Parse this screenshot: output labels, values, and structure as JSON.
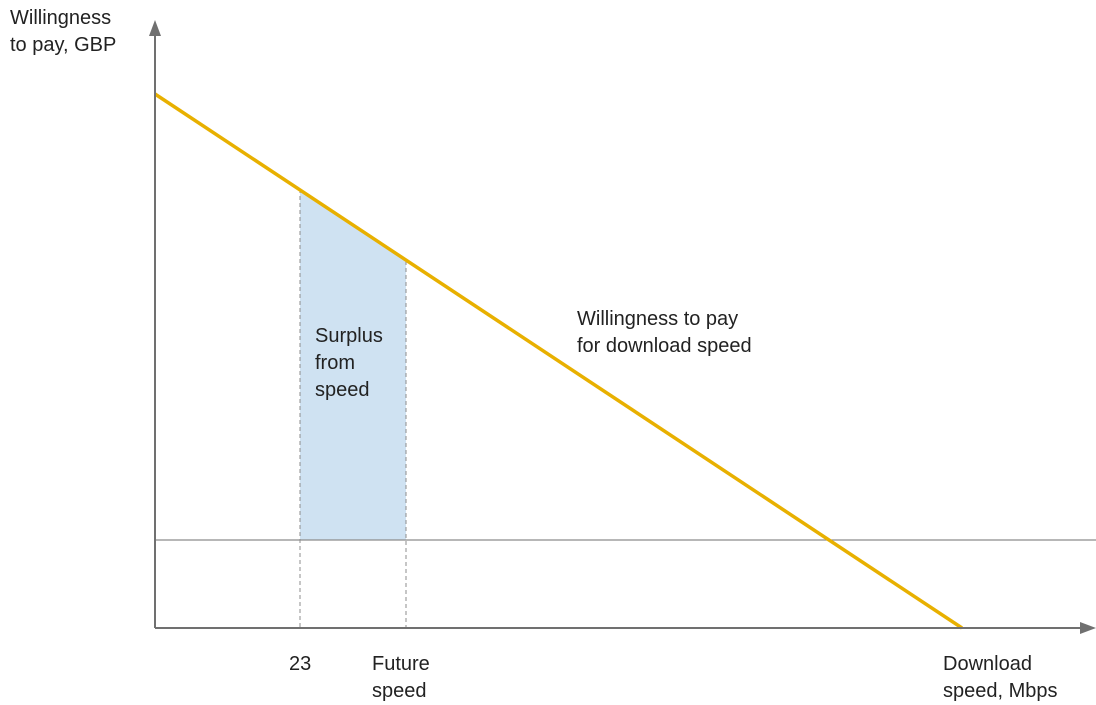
{
  "y_axis_label": "Willingness\nto pay, GBP",
  "x_axis_label": "Download\nspeed, Mbps",
  "line_label": "Willingness to pay\nfor download speed",
  "area_label": "Surplus\nfrom\nspeed",
  "x_tick_current": "23",
  "x_tick_future": "Future\nspeed",
  "colors": {
    "line": "#e8b000",
    "area": "#cfe2f2",
    "axis": "#707070",
    "guide": "#8c8c8c"
  }
}
